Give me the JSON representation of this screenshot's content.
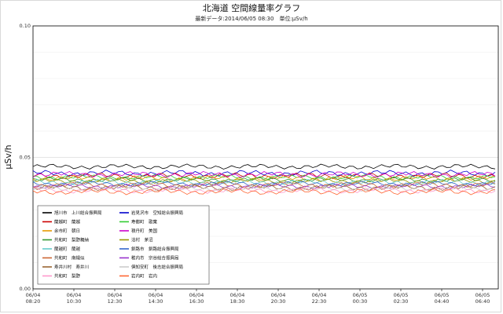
{
  "chart_data": {
    "type": "line",
    "title": "北海道 空間線量率グラフ",
    "subtitle": "最新データ:2014/06/05 08:30　単位:μSv/h",
    "ylabel": "μSv/h",
    "xlabel": "",
    "ylim": [
      0.0,
      0.1
    ],
    "yticks": [
      "0.00",
      "0.05",
      "0.10"
    ],
    "xticks": [
      [
        "06/04",
        "08:20"
      ],
      [
        "06/04",
        "10:30"
      ],
      [
        "06/04",
        "12:30"
      ],
      [
        "06/04",
        "14:30"
      ],
      [
        "06/04",
        "16:30"
      ],
      [
        "06/04",
        "18:30"
      ],
      [
        "06/04",
        "20:30"
      ],
      [
        "06/04",
        "22:30"
      ],
      [
        "06/05",
        "00:30"
      ],
      [
        "06/05",
        "02:30"
      ],
      [
        "06/05",
        "04:40"
      ],
      [
        "06/05",
        "06:40"
      ]
    ],
    "grid": true,
    "legend_position": "bottom-left",
    "series": [
      {
        "name": "旭川市　上川総合振興局",
        "color": "#000000",
        "base": 0.0465,
        "amp": 0.001
      },
      {
        "name": "岩見沢市　空知総合振興局",
        "color": "#0000cc",
        "base": 0.044,
        "amp": 0.0012
      },
      {
        "name": "蘭越町　蘭越",
        "color": "#cc0000",
        "base": 0.043,
        "amp": 0.0012
      },
      {
        "name": "寿都町　歌棄",
        "color": "#33cc33",
        "base": 0.0425,
        "amp": 0.001
      },
      {
        "name": "余市町　朝日",
        "color": "#e69900",
        "base": 0.042,
        "amp": 0.0012
      },
      {
        "name": "積丹町　美国",
        "color": "#cc00cc",
        "base": 0.0435,
        "amp": 0.0012
      },
      {
        "name": "共和町　梨野舞納",
        "color": "#339933",
        "base": 0.0415,
        "amp": 0.001
      },
      {
        "name": "泊村　茅沼",
        "color": "#999900",
        "base": 0.041,
        "amp": 0.001
      },
      {
        "name": "蘭越町　蘭越",
        "color": "#66cccc",
        "base": 0.0405,
        "amp": 0.0012
      },
      {
        "name": "釧路市　釧路総合振興局",
        "color": "#3366cc",
        "base": 0.04,
        "amp": 0.001
      },
      {
        "name": "共和町　南幌似",
        "color": "#cc6633",
        "base": 0.0395,
        "amp": 0.0012
      },
      {
        "name": "稚内市　宗谷総合振興局",
        "color": "#9933cc",
        "base": 0.039,
        "amp": 0.001
      },
      {
        "name": "寿井川村　寿井川",
        "color": "#996633",
        "base": 0.0385,
        "amp": 0.0012
      },
      {
        "name": "倶知安町　後志総合振興局",
        "color": "#cccccc",
        "base": 0.038,
        "amp": 0.001
      },
      {
        "name": "共和町　梨野",
        "color": "#ff99cc",
        "base": 0.0375,
        "amp": 0.0012
      },
      {
        "name": "岩内町　岩内",
        "color": "#ff6633",
        "base": 0.037,
        "amp": 0.0012
      }
    ],
    "points": 115
  }
}
